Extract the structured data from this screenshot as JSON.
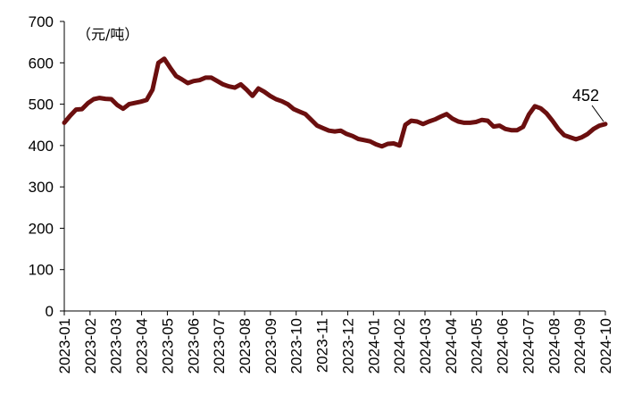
{
  "chart_data": {
    "type": "line",
    "title": "",
    "unit_label": "（元/吨）",
    "xlabel": "",
    "ylabel": "",
    "ylim": [
      0,
      700
    ],
    "yticks": [
      0,
      100,
      200,
      300,
      400,
      500,
      600,
      700
    ],
    "xticks": [
      "2023-01",
      "2023-02",
      "2023-03",
      "2023-04",
      "2023-05",
      "2023-06",
      "2023-07",
      "2023-08",
      "2023-09",
      "2023-10",
      "2023-11",
      "2023-12",
      "2024-01",
      "2024-02",
      "2024-03",
      "2024-04",
      "2024-05",
      "2024-06",
      "2024-07",
      "2024-08",
      "2024-09",
      "2024-10"
    ],
    "grid": false,
    "legend": "none",
    "line_color": "#6b0f0f",
    "annotation": {
      "text": "452",
      "value": 452
    },
    "series": [
      {
        "values": [
          455,
          472,
          487,
          488,
          502,
          512,
          515,
          513,
          512,
          498,
          489,
          500,
          503,
          506,
          510,
          535,
          600,
          610,
          588,
          568,
          560,
          551,
          556,
          558,
          564,
          564,
          556,
          548,
          543,
          540,
          548,
          535,
          520,
          538,
          530,
          520,
          512,
          507,
          500,
          488,
          482,
          476,
          462,
          448,
          442,
          436,
          434,
          436,
          428,
          423,
          416,
          413,
          410,
          403,
          398,
          404,
          405,
          400,
          450,
          460,
          458,
          452,
          458,
          463,
          470,
          476,
          465,
          458,
          455,
          455,
          457,
          462,
          460,
          446,
          448,
          440,
          437,
          437,
          445,
          475,
          495,
          490,
          478,
          460,
          440,
          425,
          420,
          415,
          420,
          428,
          440,
          448,
          452
        ]
      }
    ]
  }
}
